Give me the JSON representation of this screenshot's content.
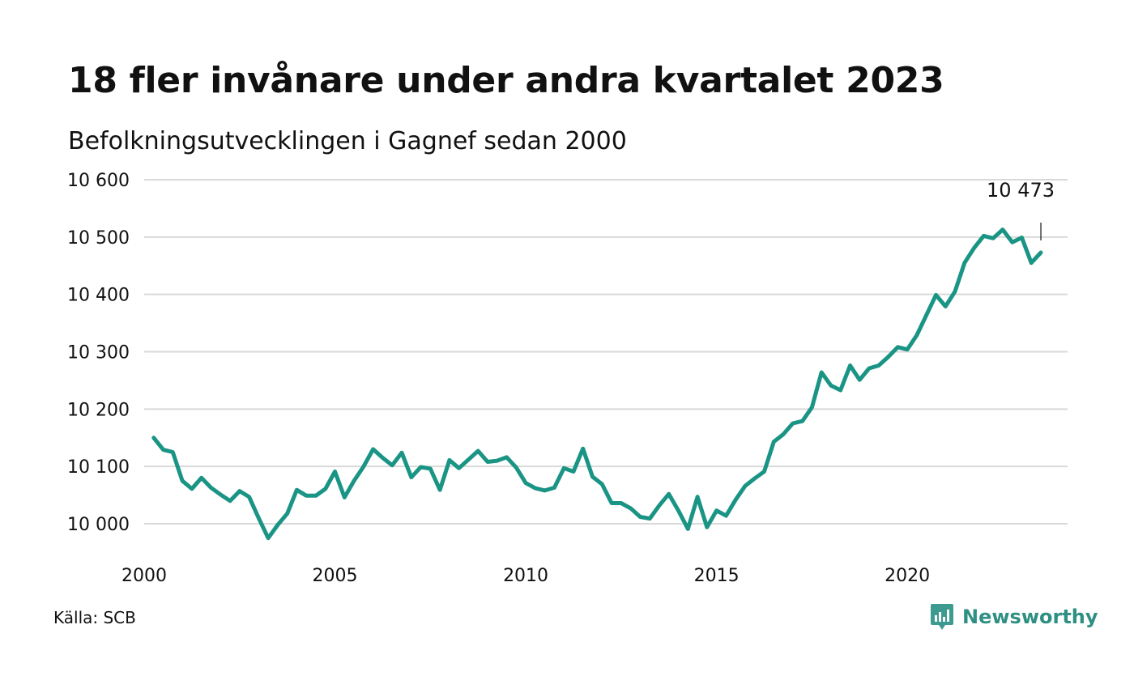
{
  "chart_data": {
    "type": "line",
    "title": "18 fler invånare under andra kvartalet 2023",
    "subtitle": "Befolkningsutvecklingen i Gagnef sedan 2000",
    "y_ticks": [
      "10 000",
      "10 100",
      "10 200",
      "10 300",
      "10 400",
      "10 500",
      "10 600"
    ],
    "y_tick_values": [
      10000,
      10100,
      10200,
      10300,
      10400,
      10500,
      10600
    ],
    "x_ticks": [
      "2000",
      "2005",
      "2010",
      "2015",
      "2020"
    ],
    "x_tick_values": [
      2000,
      2005,
      2010,
      2015,
      2020
    ],
    "ylim": [
      9985,
      10620
    ],
    "xlim": [
      2000,
      2024.2
    ],
    "grid": true,
    "line_color": "#1a9484",
    "annotation": {
      "text": "10 473",
      "x": 2023.5,
      "value": 10473
    },
    "series": [
      {
        "x": [
          2000.25,
          2000.5,
          2000.75,
          2001.0,
          2001.25,
          2001.5,
          2001.75,
          2002.0,
          2002.25,
          2002.5,
          2002.75,
          2003.0,
          2003.25,
          2003.5,
          2003.75,
          2004.0,
          2004.25,
          2004.5,
          2004.75,
          2005.0,
          2005.25,
          2005.5,
          2005.75,
          2006.0,
          2006.25,
          2006.5,
          2006.75,
          2007.0,
          2007.25,
          2007.5,
          2007.75,
          2008.0,
          2008.25,
          2008.5,
          2008.75,
          2009.0,
          2009.25,
          2009.5,
          2009.75,
          2010.0,
          2010.25,
          2010.5,
          2010.75,
          2011.0,
          2011.25,
          2011.5,
          2011.75,
          2012.0,
          2012.25,
          2012.5,
          2012.75,
          2013.0,
          2013.25,
          2013.5,
          2013.75,
          2014.0,
          2014.25,
          2014.5,
          2014.75,
          2015.0,
          2015.25,
          2015.5,
          2015.75,
          2016.0,
          2016.25,
          2016.5,
          2016.75,
          2017.0,
          2017.25,
          2017.5,
          2017.75,
          2018.0,
          2018.25,
          2018.5,
          2018.75,
          2019.0,
          2019.25,
          2019.5,
          2019.75,
          2020.0,
          2020.25,
          2020.5,
          2020.75,
          2021.0,
          2021.25,
          2021.5,
          2021.75,
          2022.0,
          2022.25,
          2022.5,
          2022.75,
          2023.0,
          2023.25,
          2023.5
        ],
        "values": [
          10150,
          10129,
          10125,
          10075,
          10061,
          10080,
          10063,
          10051,
          10040,
          10057,
          10047,
          10010,
          9975,
          9998,
          10018,
          10059,
          10049,
          10049,
          10061,
          10091,
          10046,
          10075,
          10100,
          10130,
          10115,
          10102,
          10124,
          10081,
          10099,
          10096,
          10059,
          10111,
          10097,
          10112,
          10127,
          10108,
          10110,
          10116,
          10098,
          10071,
          10062,
          10058,
          10063,
          10097,
          10091,
          10131,
          10082,
          10069,
          10036,
          10036,
          10027,
          10012,
          10009,
          10032,
          10052,
          10023,
          9991,
          10047,
          9994,
          10023,
          10014,
          10042,
          10066,
          10079,
          10091,
          10143,
          10156,
          10175,
          10179,
          10203,
          10264,
          10241,
          10233,
          10276,
          10251,
          10271,
          10276,
          10291,
          10308,
          10304,
          10329,
          10364,
          10399,
          10379,
          10405,
          10455,
          10481,
          10502,
          10498,
          10513,
          10491,
          10499,
          10455,
          10473
        ]
      }
    ]
  },
  "source": "Källa: SCB",
  "brand": {
    "name": "Newsworthy",
    "icon": "newsworthy-logo-icon",
    "color": "#3d9a8f"
  }
}
